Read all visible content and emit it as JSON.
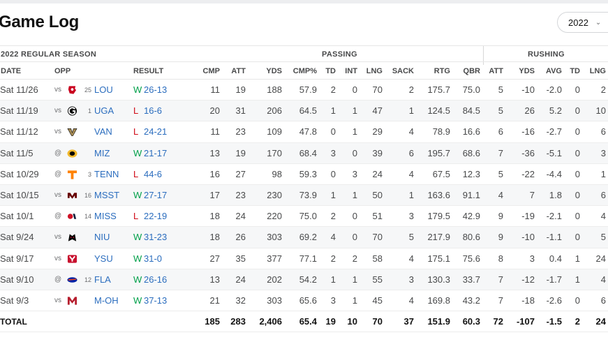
{
  "page_title": "Game Log",
  "season_select": "2022",
  "group_headers": {
    "season": "2022 REGULAR SEASON",
    "passing": "PASSING",
    "rushing": "RUSHING"
  },
  "columns": [
    "DATE",
    "OPP",
    "RESULT",
    "CMP",
    "ATT",
    "YDS",
    "CMP%",
    "TD",
    "INT",
    "LNG",
    "SACK",
    "RTG",
    "QBR",
    "ATT",
    "YDS",
    "AVG",
    "TD",
    "LNG"
  ],
  "colors": {
    "win": "#02a04a",
    "loss": "#d00a17",
    "link": "#2b6dbe"
  },
  "games": [
    {
      "date": "Sat 11/26",
      "prefix": "vs",
      "logo": "louisville-logo",
      "rank": "25",
      "opp": "LOU",
      "wl": "W",
      "score": "26-13",
      "stats": [
        "11",
        "19",
        "188",
        "57.9",
        "2",
        "0",
        "70",
        "2",
        "175.7",
        "75.0",
        "5",
        "-10",
        "-2.0",
        "0",
        "2"
      ]
    },
    {
      "date": "Sat 11/19",
      "prefix": "vs",
      "logo": "georgia-logo",
      "rank": "1",
      "opp": "UGA",
      "wl": "L",
      "score": "16-6",
      "stats": [
        "20",
        "31",
        "206",
        "64.5",
        "1",
        "1",
        "47",
        "1",
        "124.5",
        "84.5",
        "5",
        "26",
        "5.2",
        "0",
        "10"
      ]
    },
    {
      "date": "Sat 11/12",
      "prefix": "vs",
      "logo": "vanderbilt-logo",
      "rank": "",
      "opp": "VAN",
      "wl": "L",
      "score": "24-21",
      "stats": [
        "11",
        "23",
        "109",
        "47.8",
        "0",
        "1",
        "29",
        "4",
        "78.9",
        "16.6",
        "6",
        "-16",
        "-2.7",
        "0",
        "6"
      ]
    },
    {
      "date": "Sat 11/5",
      "prefix": "@",
      "logo": "missouri-logo",
      "rank": "",
      "opp": "MIZ",
      "wl": "W",
      "score": "21-17",
      "stats": [
        "13",
        "19",
        "170",
        "68.4",
        "3",
        "0",
        "39",
        "6",
        "195.7",
        "68.6",
        "7",
        "-36",
        "-5.1",
        "0",
        "3"
      ]
    },
    {
      "date": "Sat 10/29",
      "prefix": "@",
      "logo": "tennessee-logo",
      "rank": "3",
      "opp": "TENN",
      "wl": "L",
      "score": "44-6",
      "stats": [
        "16",
        "27",
        "98",
        "59.3",
        "0",
        "3",
        "24",
        "4",
        "67.5",
        "12.3",
        "5",
        "-22",
        "-4.4",
        "0",
        "1"
      ]
    },
    {
      "date": "Sat 10/15",
      "prefix": "vs",
      "logo": "mississippi-state-logo",
      "rank": "16",
      "opp": "MSST",
      "wl": "W",
      "score": "27-17",
      "stats": [
        "17",
        "23",
        "230",
        "73.9",
        "1",
        "1",
        "50",
        "1",
        "163.6",
        "91.1",
        "4",
        "7",
        "1.8",
        "0",
        "6"
      ]
    },
    {
      "date": "Sat 10/1",
      "prefix": "@",
      "logo": "ole-miss-logo",
      "rank": "14",
      "opp": "MISS",
      "wl": "L",
      "score": "22-19",
      "stats": [
        "18",
        "24",
        "220",
        "75.0",
        "2",
        "0",
        "51",
        "3",
        "179.5",
        "42.9",
        "9",
        "-19",
        "-2.1",
        "0",
        "4"
      ]
    },
    {
      "date": "Sat 9/24",
      "prefix": "vs",
      "logo": "northern-illinois-logo",
      "rank": "",
      "opp": "NIU",
      "wl": "W",
      "score": "31-23",
      "stats": [
        "18",
        "26",
        "303",
        "69.2",
        "4",
        "0",
        "70",
        "5",
        "217.9",
        "80.6",
        "9",
        "-10",
        "-1.1",
        "0",
        "5"
      ]
    },
    {
      "date": "Sat 9/17",
      "prefix": "vs",
      "logo": "youngstown-state-logo",
      "rank": "",
      "opp": "YSU",
      "wl": "W",
      "score": "31-0",
      "stats": [
        "27",
        "35",
        "377",
        "77.1",
        "2",
        "2",
        "58",
        "4",
        "175.1",
        "75.6",
        "8",
        "3",
        "0.4",
        "1",
        "24"
      ]
    },
    {
      "date": "Sat 9/10",
      "prefix": "@",
      "logo": "florida-logo",
      "rank": "12",
      "opp": "FLA",
      "wl": "W",
      "score": "26-16",
      "stats": [
        "13",
        "24",
        "202",
        "54.2",
        "1",
        "1",
        "55",
        "3",
        "130.3",
        "33.7",
        "7",
        "-12",
        "-1.7",
        "1",
        "4"
      ]
    },
    {
      "date": "Sat 9/3",
      "prefix": "vs",
      "logo": "miami-ohio-logo",
      "rank": "",
      "opp": "M-OH",
      "wl": "W",
      "score": "37-13",
      "stats": [
        "21",
        "32",
        "303",
        "65.6",
        "3",
        "1",
        "45",
        "4",
        "169.8",
        "43.2",
        "7",
        "-18",
        "-2.6",
        "0",
        "6"
      ]
    }
  ],
  "totals": {
    "label": "TOTAL",
    "stats": [
      "185",
      "283",
      "2,406",
      "65.4",
      "19",
      "10",
      "70",
      "37",
      "151.9",
      "60.3",
      "72",
      "-107",
      "-1.5",
      "2",
      "24"
    ]
  }
}
